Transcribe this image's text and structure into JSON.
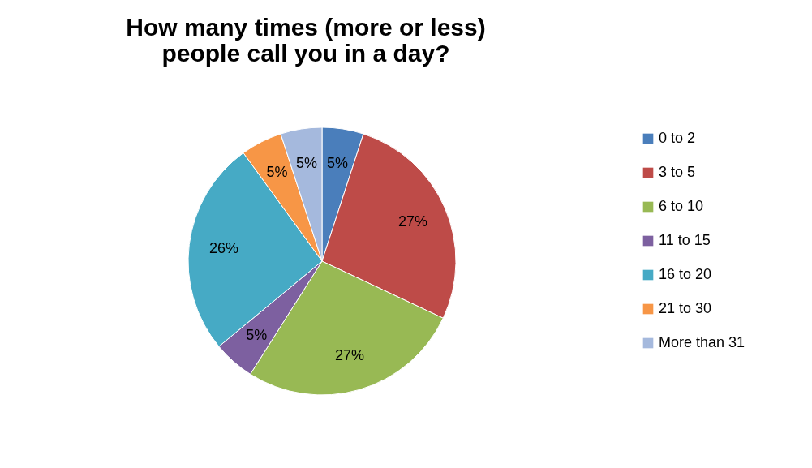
{
  "chart_data": {
    "type": "pie",
    "title": "How many times (more or less) people call you in a day?",
    "categories": [
      "0 to 2",
      "3 to 5",
      "6 to 10",
      "11 to 15",
      "16 to 20",
      "21 to 30",
      "More than 31"
    ],
    "values": [
      5,
      27,
      27,
      5,
      26,
      5,
      5
    ],
    "value_labels": [
      "5%",
      "27%",
      "27%",
      "5%",
      "26%",
      "5%",
      "5%"
    ],
    "colors": [
      "#4a7ebb",
      "#be4b48",
      "#98b954",
      "#7d60a0",
      "#46aac5",
      "#f79646",
      "#a5b9dd"
    ],
    "legend": "right"
  }
}
